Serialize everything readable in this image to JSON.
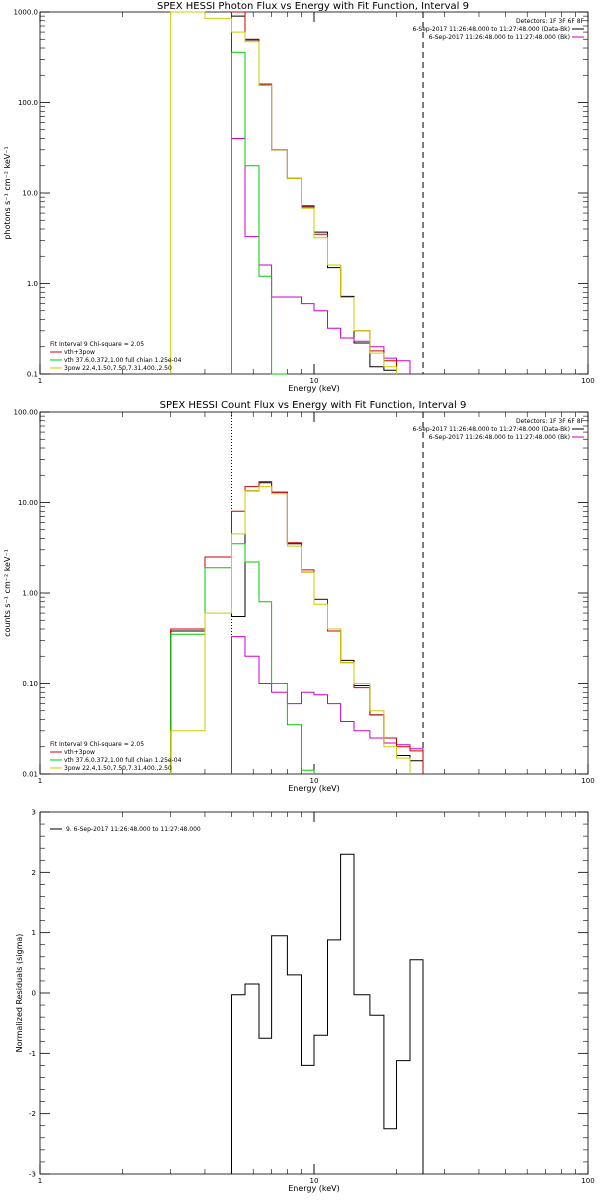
{
  "chart_data": [
    {
      "type": "line",
      "title": "SPEX HESSI Photon Flux vs Energy with Fit Function, Interval 9",
      "xlabel": "Energy (keV)",
      "ylabel": "photons s⁻¹ cm⁻² keV⁻¹",
      "xscale": "log",
      "yscale": "log",
      "xlim": [
        1,
        100
      ],
      "ylim": [
        0.1,
        1000
      ],
      "xtick_labels": [
        "1",
        "10",
        "100"
      ],
      "ytick_labels": [
        "0.1",
        "1.0",
        "10.0",
        "100.0",
        "1000.0"
      ],
      "vlines": [
        {
          "x": 5,
          "style": "dotted",
          "color": "#000000"
        },
        {
          "x": 25,
          "style": "dashed",
          "color": "#000000"
        }
      ],
      "legend_top_right": {
        "header": "Detectors: 1F 3F 6F 8F",
        "entries": [
          {
            "label": "6-Sep-2017 11:26:48.000 to 11:27:48.000 (Data-Bk)",
            "color": "#000000"
          },
          {
            "label": "6-Sep-2017 11:26:48.000 to 11:27:48.000 (Bk)",
            "color": "#cc00cc"
          }
        ]
      },
      "legend_bottom_left": {
        "header": "Fit Interval 9   Chi-square = 2.05",
        "entries": [
          {
            "label": "vth+3pow",
            "color": "#cc0000"
          },
          {
            "label": "vth 37.6,0.372,1.00  full chian 1.25e-04",
            "color": "#00cc00"
          },
          {
            "label": "3pow 22.4,1.50,7.50,7.31,400.,2.50",
            "color": "#cccc00"
          }
        ]
      },
      "edges": [
        3,
        4,
        5,
        5.6,
        6.3,
        7,
        8,
        9,
        10,
        11.2,
        12.5,
        14,
        16,
        18,
        20,
        22.4,
        25
      ],
      "series": [
        {
          "name": "6-Sep-2017 11:26:48.000 to 11:27:48.000 (Data-Bk)",
          "color": "#000000",
          "values": [
            null,
            null,
            900,
            490,
            155,
            30,
            14.5,
            7.2,
            3.7,
            1.5,
            0.72,
            0.22,
            0.12,
            0.11,
            null,
            null
          ]
        },
        {
          "name": "6-Sep-2017 11:26:48.000 to 11:27:48.000 (Bk)",
          "color": "#cc00cc",
          "values": [
            null,
            null,
            40,
            3.3,
            1.6,
            0.71,
            0.71,
            0.6,
            0.5,
            0.32,
            0.25,
            0.23,
            0.2,
            0.15,
            0.14,
            null
          ]
        },
        {
          "name": "vth+3pow",
          "color": "#cc0000",
          "values": [
            null,
            null,
            1000,
            500,
            160,
            30,
            14.5,
            7,
            3.5,
            1.6,
            0.7,
            0.3,
            0.18,
            0.14,
            null,
            null
          ]
        },
        {
          "name": "vth 37.6,0.372,1.00  full chian 1.25e-04",
          "color": "#00cc00",
          "values": [
            null,
            null,
            360,
            20,
            1.2,
            0.05,
            null,
            null,
            null,
            null,
            null,
            null,
            null,
            null,
            null,
            null
          ]
        },
        {
          "name": "3pow 22.4,1.50,7.50,7.31,400.,2.50",
          "color": "#cccc00",
          "values": [
            1000,
            850,
            600,
            470,
            155,
            30,
            14.5,
            6.8,
            3.2,
            1.6,
            0.7,
            0.3,
            0.17,
            0.12,
            null,
            null
          ]
        }
      ]
    },
    {
      "type": "line",
      "title": "SPEX HESSI Count Flux vs Energy with Fit Function, Interval 9",
      "xlabel": "Energy (keV)",
      "ylabel": "counts s⁻¹ cm⁻² keV⁻¹",
      "xscale": "log",
      "yscale": "log",
      "xlim": [
        1,
        100
      ],
      "ylim": [
        0.01,
        100
      ],
      "xtick_labels": [
        "1",
        "10",
        "100"
      ],
      "ytick_labels": [
        "0.01",
        "0.10",
        "1.00",
        "10.00",
        "100.00"
      ],
      "vlines": [
        {
          "x": 5,
          "style": "dotted",
          "color": "#000000"
        },
        {
          "x": 25,
          "style": "dashed",
          "color": "#000000"
        }
      ],
      "legend_top_right": {
        "header": "Detectors: 1F 3F 6F 8F",
        "entries": [
          {
            "label": "6-Sep-2017 11:26:48.000 to 11:27:48.000 (Data-Bk)",
            "color": "#000000"
          },
          {
            "label": "6-Sep-2017 11:26:48.000 to 11:27:48.000 (Bk)",
            "color": "#cc00cc"
          }
        ]
      },
      "legend_bottom_left": {
        "header": "Fit Interval 9   Chi-square = 2.05",
        "entries": [
          {
            "label": "vth+3pow",
            "color": "#cc0000"
          },
          {
            "label": "vth 37.6,0.372,1.00  full chian 1.25e-04",
            "color": "#00cc00"
          },
          {
            "label": "3pow 22.4,1.50,7.50,7.31,400.,2.50",
            "color": "#cccc00"
          }
        ]
      },
      "edges": [
        3,
        4,
        5,
        5.6,
        6.3,
        7,
        8,
        9,
        10,
        11.2,
        12.5,
        14,
        16,
        18,
        20,
        22.4,
        25
      ],
      "series": [
        {
          "name": "6-Sep-2017 11:26:48.000 to 11:27:48.000 (Data-Bk)",
          "color": "#000000",
          "values": [
            0.38,
            2.5,
            0.55,
            13.5,
            16.5,
            13,
            3.5,
            1.7,
            0.85,
            0.4,
            0.18,
            0.095,
            0.045,
            0.022,
            0.016,
            0.014
          ]
        },
        {
          "name": "6-Sep-2017 11:26:48.000 to 11:27:48.000 (Bk)",
          "color": "#cc00cc",
          "values": [
            null,
            null,
            0.33,
            0.2,
            0.1,
            0.08,
            0.06,
            0.08,
            0.075,
            0.06,
            0.038,
            0.03,
            0.025,
            0.022,
            0.021,
            0.019
          ]
        },
        {
          "name": "vth+3pow",
          "color": "#cc0000",
          "values": [
            0.4,
            2.5,
            8,
            15,
            17,
            13,
            3.6,
            1.8,
            0.85,
            0.38,
            0.17,
            0.09,
            0.045,
            0.025,
            0.02,
            0.018
          ]
        },
        {
          "name": "vth 37.6,0.372,1.00  full chian 1.25e-04",
          "color": "#00cc00",
          "values": [
            0.35,
            1.9,
            3.5,
            2.2,
            0.8,
            0.1,
            0.035,
            0.011,
            null,
            null,
            null,
            null,
            null,
            null,
            null,
            null
          ]
        },
        {
          "name": "3pow 22.4,1.50,7.50,7.31,400.,2.50",
          "color": "#cccc00",
          "values": [
            0.03,
            0.6,
            4.5,
            13.5,
            15,
            12.5,
            3.3,
            1.7,
            0.75,
            0.4,
            0.17,
            0.1,
            0.05,
            0.02,
            0.015,
            null
          ]
        }
      ]
    },
    {
      "type": "line",
      "title": "",
      "xlabel": "Energy (keV)",
      "ylabel": "Normalized Residuals (sigma)",
      "xscale": "log",
      "yscale": "linear",
      "xlim": [
        1,
        100
      ],
      "ylim": [
        -3,
        3
      ],
      "xtick_labels": [
        "1",
        "10",
        "100"
      ],
      "ytick_labels": [
        "-3",
        "-2",
        "-1",
        "0",
        "1",
        "2",
        "3"
      ],
      "legend_top_left": {
        "entries": [
          {
            "label": "9.  6-Sep-2017 11:26:48.000 to 11:27:48.000",
            "color": "#000000"
          }
        ]
      },
      "edges": [
        5,
        5.6,
        6.3,
        7,
        8,
        9,
        10,
        11.2,
        12.5,
        14,
        16,
        18,
        20,
        22.4,
        25
      ],
      "series": [
        {
          "name": "9.  6-Sep-2017 11:26:48.000 to 11:27:48.000",
          "color": "#000000",
          "values": [
            -0.03,
            0.15,
            -0.75,
            0.95,
            0.3,
            -1.2,
            -0.7,
            0.88,
            2.3,
            -0.03,
            -0.37,
            -2.25,
            -1.12,
            0.55
          ]
        }
      ]
    }
  ]
}
